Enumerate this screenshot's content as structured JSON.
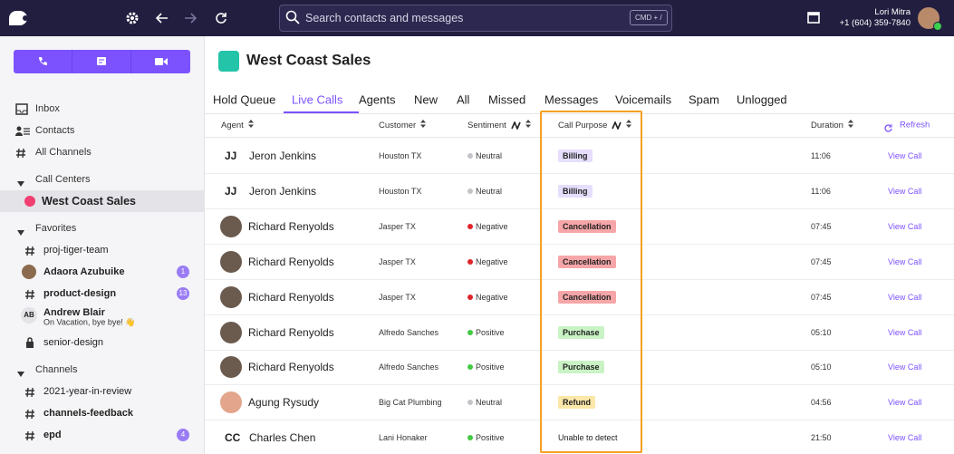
{
  "topbar": {
    "search_placeholder": "Search contacts and messages",
    "shortcut": "CMD + /",
    "user_name": "Lori Mitra",
    "user_phone": "+1 (604) 359-7840"
  },
  "sidebar": {
    "nav": [
      "Inbox",
      "Contacts",
      "All Channels"
    ],
    "sections": [
      {
        "title": "Call Centers",
        "items": [
          {
            "label": "West Coast Sales",
            "icon": "dot",
            "bold": true,
            "active": true
          }
        ]
      },
      {
        "title": "Favorites",
        "items": [
          {
            "label": "proj-tiger-team",
            "icon": "hash"
          },
          {
            "label": "Adaora Azubuike",
            "icon": "avatar",
            "bold": true,
            "badge": "1"
          },
          {
            "label": "product-design",
            "icon": "hash",
            "bold": true,
            "badge": "13"
          },
          {
            "label": "Andrew Blair",
            "icon": "initials",
            "initials": "AB",
            "status": "On Vacation, bye bye! 👋",
            "bold": true
          },
          {
            "label": "senior-design",
            "icon": "lock"
          }
        ]
      },
      {
        "title": "Channels",
        "items": [
          {
            "label": "2021-year-in-review",
            "icon": "hash"
          },
          {
            "label": "channels-feedback",
            "icon": "hash",
            "bold": true
          },
          {
            "label": "epd",
            "icon": "hash",
            "bold": true,
            "badge": "4"
          }
        ]
      }
    ]
  },
  "main": {
    "title": "West Coast Sales",
    "tabs": [
      "Hold Queue",
      "Live Calls",
      "Agents",
      "New",
      "All",
      "Missed",
      "Messages",
      "Voicemails",
      "Spam",
      "Unlogged"
    ],
    "active_tab": 1,
    "columns": [
      "Agent",
      "Customer",
      "Sentiment",
      "Call Purpose",
      "Duration"
    ],
    "refresh": "Refresh",
    "rows": [
      {
        "initials": "JJ",
        "agent": "Jeron Jenkins",
        "customer": "Houston TX",
        "sentiment": "Neutral",
        "sentiment_color": "#c4c4c8",
        "purpose": "Billing",
        "purpose_color": "#e6defc",
        "duration": "11:06",
        "action": "View Call"
      },
      {
        "initials": "JJ",
        "agent": "Jeron Jenkins",
        "customer": "Houston TX",
        "sentiment": "Neutral",
        "sentiment_color": "#c4c4c8",
        "purpose": "Billing",
        "purpose_color": "#e6defc",
        "duration": "11:06",
        "action": "View Call"
      },
      {
        "agent": "Richard Renyolds",
        "avatar_color": "#6b5a4e",
        "customer": "Jasper TX",
        "sentiment": "Negative",
        "sentiment_color": "#e0242a",
        "purpose": "Cancellation",
        "purpose_color": "#f6a6a8",
        "duration": "07:45",
        "action": "View Call"
      },
      {
        "agent": "Richard Renyolds",
        "avatar_color": "#6b5a4e",
        "customer": "Jasper TX",
        "sentiment": "Negative",
        "sentiment_color": "#e0242a",
        "purpose": "Cancellation",
        "purpose_color": "#f6a6a8",
        "duration": "07:45",
        "action": "View Call"
      },
      {
        "agent": "Richard Renyolds",
        "avatar_color": "#6b5a4e",
        "customer": "Jasper TX",
        "sentiment": "Negative",
        "sentiment_color": "#e0242a",
        "purpose": "Cancellation",
        "purpose_color": "#f6a6a8",
        "duration": "07:45",
        "action": "View Call"
      },
      {
        "agent": "Richard Renyolds",
        "avatar_color": "#6b5a4e",
        "customer": "Alfredo Sanches",
        "sentiment": "Positive",
        "sentiment_color": "#43c943",
        "purpose": "Purchase",
        "purpose_color": "#c9f3c4",
        "duration": "05:10",
        "action": "View Call"
      },
      {
        "agent": "Richard Renyolds",
        "avatar_color": "#6b5a4e",
        "customer": "Alfredo Sanches",
        "sentiment": "Positive",
        "sentiment_color": "#43c943",
        "purpose": "Purchase",
        "purpose_color": "#c9f3c4",
        "duration": "05:10",
        "action": "View Call"
      },
      {
        "agent": "Agung Rysudy",
        "avatar_color": "#e3a58c",
        "customer": "Big Cat Plumbing",
        "sentiment": "Neutral",
        "sentiment_color": "#c4c4c8",
        "purpose": "Refund",
        "purpose_color": "#fbe7a8",
        "duration": "04:56",
        "action": "View Call"
      },
      {
        "initials": "CC",
        "agent": "Charles Chen",
        "customer": "Lani Honaker",
        "sentiment": "Positive",
        "sentiment_color": "#43c943",
        "purpose": "Unable to detect",
        "duration": "21:50",
        "action": "View Call"
      }
    ]
  }
}
